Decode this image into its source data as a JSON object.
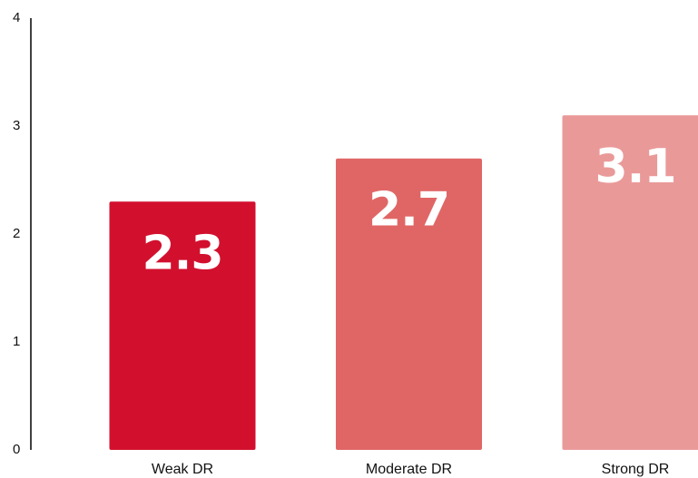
{
  "chart_data": {
    "type": "bar",
    "categories": [
      "Weak DR",
      "Moderate DR",
      "Strong DR"
    ],
    "values": [
      2.3,
      2.7,
      3.1
    ],
    "colors": [
      "#d2102e",
      "#e06666",
      "#ea9999"
    ],
    "ylim": [
      0,
      4
    ],
    "yticks": [
      0,
      1,
      2,
      3,
      4
    ],
    "grid": false
  }
}
